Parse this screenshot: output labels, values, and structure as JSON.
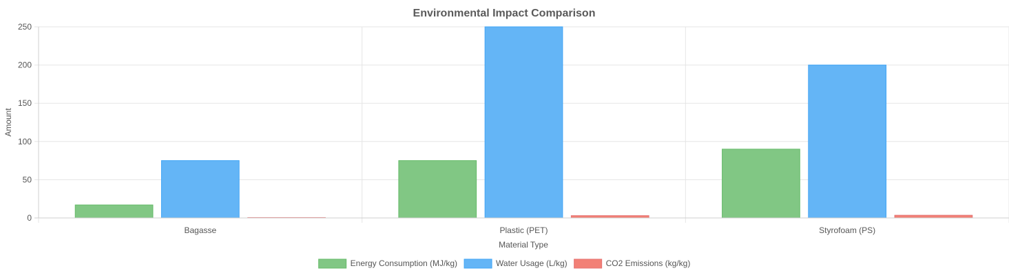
{
  "chart_data": {
    "type": "bar",
    "title": "Environmental Impact Comparison",
    "xlabel": "Material Type",
    "ylabel": "Amount",
    "categories": [
      "Bagasse",
      "Plastic (PET)",
      "Styrofoam (PS)"
    ],
    "ylim": [
      0,
      250
    ],
    "yticks": [
      "0",
      "50",
      "100",
      "150",
      "200",
      "250"
    ],
    "grid": true,
    "legend_position": "bottom",
    "series": [
      {
        "name": "Energy Consumption (MJ/kg)",
        "values": [
          17,
          75,
          90
        ],
        "color": "#81c784",
        "border": "#66bb6a"
      },
      {
        "name": "Water Usage (L/kg)",
        "values": [
          75,
          250,
          200
        ],
        "color": "#64b5f6",
        "border": "#42a5f5"
      },
      {
        "name": "CO2 Emissions (kg/kg)",
        "values": [
          0.5,
          3,
          3.5
        ],
        "color": "#f28076",
        "border": "#e57373"
      }
    ]
  }
}
